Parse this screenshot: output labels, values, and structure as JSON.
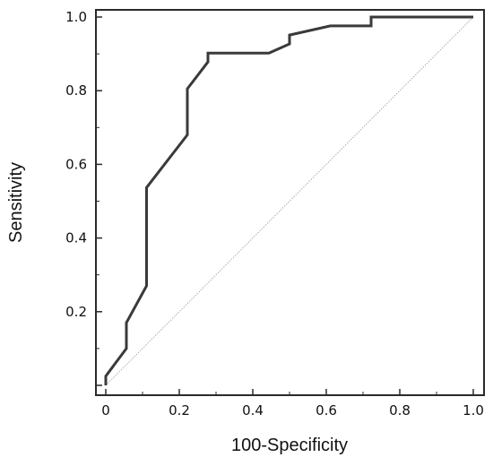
{
  "chart_data": {
    "type": "line",
    "xlabel": "100-Specificity",
    "ylabel": "Sensitivity",
    "xlim": [
      0,
      1
    ],
    "ylim": [
      0,
      1
    ],
    "grid": false,
    "x_ticks": [
      {
        "value": 0,
        "label": "0"
      },
      {
        "value": 0.2,
        "label": "0.2"
      },
      {
        "value": 0.4,
        "label": "0.4"
      },
      {
        "value": 0.6,
        "label": "0.6"
      },
      {
        "value": 0.8,
        "label": "0.8"
      },
      {
        "value": 1.0,
        "label": "1.0"
      }
    ],
    "y_ticks": [
      {
        "value": 0.2,
        "label": "0.2"
      },
      {
        "value": 0.4,
        "label": "0.4"
      },
      {
        "value": 0.6,
        "label": "0.6"
      },
      {
        "value": 0.8,
        "label": "0.8"
      },
      {
        "value": 1.0,
        "label": "1.0"
      }
    ],
    "series": [
      {
        "color": "#3a3a3a",
        "points": [
          [
            0.0,
            0.0
          ],
          [
            0.0,
            0.025
          ],
          [
            0.056,
            0.1
          ],
          [
            0.056,
            0.17
          ],
          [
            0.111,
            0.27
          ],
          [
            0.111,
            0.537
          ],
          [
            0.222,
            0.68
          ],
          [
            0.222,
            0.805
          ],
          [
            0.278,
            0.878
          ],
          [
            0.278,
            0.902
          ],
          [
            0.444,
            0.902
          ],
          [
            0.5,
            0.927
          ],
          [
            0.5,
            0.951
          ],
          [
            0.611,
            0.976
          ],
          [
            0.722,
            0.976
          ],
          [
            0.722,
            1.0
          ],
          [
            1.0,
            1.0
          ]
        ]
      }
    ],
    "reference_line": {
      "from": [
        0,
        0
      ],
      "to": [
        1,
        1
      ],
      "color": "#999999"
    }
  }
}
